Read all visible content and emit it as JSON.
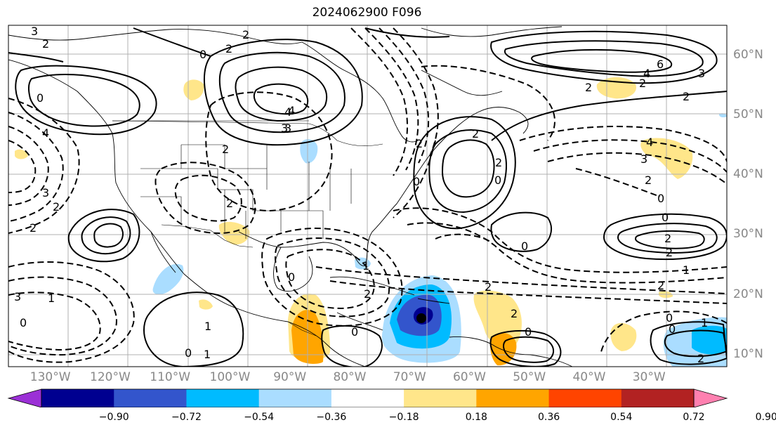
{
  "title": "2024062900 F096",
  "latitude_labels": [
    {
      "text": "60°N",
      "lat": 60
    },
    {
      "text": "50°N",
      "lat": 50
    },
    {
      "text": "40°N",
      "lat": 40
    },
    {
      "text": "30°N",
      "lat": 30
    },
    {
      "text": "20°N",
      "lat": 20
    },
    {
      "text": "10°N",
      "lat": 10
    }
  ],
  "longitude_labels": [
    {
      "text": "130°W",
      "lon": -130
    },
    {
      "text": "120°W",
      "lon": -120
    },
    {
      "text": "110°W",
      "lon": -110
    },
    {
      "text": "100°W",
      "lon": -100
    },
    {
      "text": "90°W",
      "lon": -90
    },
    {
      "text": "80°W",
      "lon": -80
    },
    {
      "text": "70°W",
      "lon": -70
    },
    {
      "text": "60°W",
      "lon": -60
    },
    {
      "text": "50°W",
      "lon": -50
    },
    {
      "text": "40°W",
      "lon": -40
    },
    {
      "text": "30°W",
      "lon": -30
    }
  ],
  "map_extent": {
    "lon_min": -137,
    "lon_max": -17,
    "lat_min": 8,
    "lat_max": 65
  },
  "colorbar": {
    "ticks": [
      "−0.90",
      "−0.72",
      "−0.54",
      "−0.36",
      "−0.18",
      "0.18",
      "0.36",
      "0.54",
      "0.72",
      "0.90"
    ],
    "colors": [
      "#9b30d6",
      "#000090",
      "#3355cc",
      "#00bbff",
      "#aaddff",
      "#ffffff",
      "#ffe68a",
      "#ffa500",
      "#ff4400",
      "#b22222",
      "#ff80b0"
    ]
  },
  "contour_labels": [
    "3",
    "2",
    "0",
    "3",
    "2",
    "2",
    "0",
    "2",
    "4",
    "3",
    "2",
    "2",
    "1",
    "0",
    "4",
    "3",
    "2",
    "0",
    "1",
    "1",
    "0",
    "6",
    "4",
    "3",
    "2",
    "2",
    "4",
    "3",
    "2",
    "0",
    "0",
    "2",
    "2",
    "1",
    "2",
    "2",
    "3",
    "4",
    "2",
    "0",
    "0",
    "2",
    "2",
    "0",
    "2",
    "1",
    "0",
    "0",
    "1",
    "0",
    "2",
    "0",
    "2",
    "2"
  ]
}
